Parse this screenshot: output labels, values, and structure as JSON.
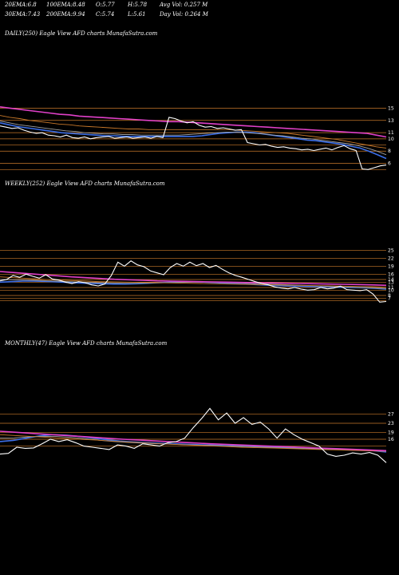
{
  "header": {
    "row1": [
      {
        "label": "20EMA:",
        "value": "6.8"
      },
      {
        "label": "100EMA:",
        "value": "8.48"
      },
      {
        "label": "O:",
        "value": "5.77"
      },
      {
        "label": "H:",
        "value": "5.78"
      },
      {
        "label": "Avg Vol:",
        "value": "0.257"
      },
      {
        "label": "M",
        "value": ""
      }
    ],
    "row2": [
      {
        "label": "30EMA:",
        "value": "7.43"
      },
      {
        "label": "200EMA:",
        "value": "9.94"
      },
      {
        "label": "C:",
        "value": "5.74"
      },
      {
        "label": "L:",
        "value": "5.61"
      },
      {
        "label": "Day Vol:",
        "value": "0.264"
      },
      {
        "label": "M",
        "value": ""
      }
    ]
  },
  "colors": {
    "background": "#000000",
    "price": "#ffffff",
    "ema_blue": "#3b6ee8",
    "ema_pink": "#e040c8",
    "ema_orange": "#c8782a",
    "ema_gray": "#a0a0a0",
    "support_line": "#c8782a"
  },
  "chart_data": [
    {
      "type": "line",
      "title": "DAILY(250) Eagle   View  AFD charts MunafaSutra.com",
      "ylabels": [
        "15",
        "13",
        "11",
        "10",
        "8",
        "6"
      ],
      "hlines": [
        15,
        13,
        11,
        10,
        9,
        8,
        6,
        5
      ],
      "ylim": [
        4,
        17
      ],
      "series": [
        {
          "role": "price",
          "values": [
            12.1,
            11.9,
            11.7,
            11.8,
            11.4,
            11.1,
            10.9,
            11.0,
            10.6,
            10.5,
            10.3,
            10.6,
            10.2,
            10.1,
            10.3,
            10.0,
            10.2,
            10.3,
            10.4,
            10.1,
            10.2,
            10.3,
            10.1,
            10.2,
            10.3,
            10.1,
            10.4,
            10.2,
            13.5,
            13.3,
            12.9,
            12.6,
            12.8,
            12.2,
            11.9,
            12.0,
            11.7,
            11.8,
            11.6,
            11.4,
            11.5,
            9.4,
            9.2,
            9.0,
            9.1,
            8.8,
            8.6,
            8.7,
            8.5,
            8.4,
            8.2,
            8.3,
            8.1,
            8.3,
            8.5,
            8.2,
            8.6,
            8.9,
            8.4,
            8.1,
            5.1,
            5.0,
            5.3,
            5.6,
            5.74
          ]
        },
        {
          "role": "ema",
          "color": "blue",
          "values": [
            12.6,
            12.3,
            12.0,
            11.8,
            11.6,
            11.4,
            11.2,
            11.0,
            10.9,
            10.8,
            10.7,
            10.6,
            10.5,
            10.5,
            10.4,
            10.4,
            10.4,
            10.4,
            10.4,
            10.4,
            10.4,
            10.4,
            10.4,
            10.5,
            10.7,
            10.9,
            11.0,
            11.1,
            11.1,
            11.0,
            10.8,
            10.6,
            10.4,
            10.2,
            10.0,
            9.8,
            9.7,
            9.5,
            9.3,
            9.1,
            8.8,
            8.5,
            8.0,
            7.4,
            6.8
          ]
        },
        {
          "role": "ema",
          "color": "gray",
          "values": [
            12.9,
            12.6,
            12.3,
            12.1,
            11.9,
            11.7,
            11.5,
            11.3,
            11.2,
            11.0,
            10.9,
            10.8,
            10.8,
            10.7,
            10.7,
            10.6,
            10.6,
            10.6,
            10.6,
            10.6,
            10.7,
            10.8,
            10.9,
            11.0,
            11.1,
            11.1,
            11.0,
            10.9,
            10.8,
            10.6,
            10.5,
            10.3,
            10.1,
            10.0,
            9.8,
            9.6,
            9.4,
            9.2,
            8.9,
            8.5,
            8.0,
            7.4
          ]
        },
        {
          "role": "ema",
          "color": "orange",
          "values": [
            13.8,
            13.5,
            13.3,
            13.0,
            12.8,
            12.6,
            12.4,
            12.3,
            12.1,
            12.0,
            11.9,
            11.8,
            11.7,
            11.6,
            11.6,
            11.5,
            11.5,
            11.5,
            11.5,
            11.5,
            11.5,
            11.5,
            11.5,
            11.5,
            11.4,
            11.3,
            11.2,
            11.1,
            11.0,
            10.9,
            10.7,
            10.5,
            10.3,
            10.1,
            9.9,
            9.6,
            9.3,
            9.0,
            8.7,
            8.5
          ]
        },
        {
          "role": "ema",
          "color": "pink",
          "values": [
            15.2,
            15.0,
            14.8,
            14.6,
            14.4,
            14.2,
            14.0,
            13.9,
            13.7,
            13.6,
            13.5,
            13.4,
            13.3,
            13.2,
            13.1,
            13.0,
            12.9,
            12.8,
            12.8,
            12.7,
            12.6,
            12.5,
            12.4,
            12.3,
            12.2,
            12.1,
            12.0,
            11.9,
            11.8,
            11.7,
            11.6,
            11.5,
            11.4,
            11.3,
            11.2,
            11.1,
            11.0,
            10.9,
            10.6,
            10.3
          ]
        }
      ]
    },
    {
      "type": "line",
      "title": "WEEKLY(252) Eagle   View  AFD charts MunafaSutra.com",
      "ylabels": [
        "25",
        "22",
        "19",
        "16",
        "14",
        "13",
        "11",
        "10",
        "8",
        "7"
      ],
      "hlines": [
        25,
        22,
        19,
        16,
        14,
        13,
        11,
        10,
        8,
        7,
        6
      ],
      "ylim": [
        2,
        26
      ],
      "series": [
        {
          "role": "price",
          "values": [
            13.5,
            14.0,
            15.5,
            14.8,
            16.0,
            15.2,
            14.5,
            15.8,
            14.2,
            13.8,
            13.0,
            12.5,
            13.2,
            12.8,
            12.0,
            11.6,
            12.3,
            15.5,
            20.5,
            19.0,
            21.0,
            19.5,
            18.8,
            17.2,
            16.5,
            15.8,
            18.5,
            20.0,
            19.0,
            20.5,
            19.2,
            20.0,
            18.5,
            19.3,
            17.8,
            16.5,
            15.5,
            14.8,
            14.0,
            13.2,
            12.5,
            12.0,
            11.2,
            10.8,
            10.5,
            11.0,
            10.4,
            10.0,
            10.2,
            11.0,
            10.5,
            10.8,
            11.5,
            10.2,
            10.0,
            9.8,
            10.2,
            8.5,
            5.5,
            5.74
          ]
        },
        {
          "role": "ema",
          "color": "blue",
          "values": [
            13.0,
            13.2,
            13.4,
            13.4,
            13.3,
            13.1,
            12.9,
            12.7,
            12.5,
            12.4,
            12.3,
            12.3,
            12.4,
            12.6,
            12.8,
            13.0,
            13.1,
            13.1,
            13.0,
            12.8,
            12.6,
            12.4,
            12.2,
            12.0,
            11.8,
            11.6,
            11.5,
            11.4,
            11.3,
            11.2,
            11.1,
            11.0,
            10.9,
            10.7,
            10.4
          ]
        },
        {
          "role": "ema",
          "color": "gray",
          "values": [
            14.0,
            13.9,
            13.8,
            13.6,
            13.4,
            13.2,
            13.0,
            12.8,
            12.7,
            12.6,
            12.6,
            12.7,
            12.8,
            12.9,
            13.0,
            13.0,
            12.9,
            12.8,
            12.6,
            12.4,
            12.2,
            12.0,
            11.8,
            11.6,
            11.4,
            11.2,
            11.0,
            10.8,
            10.6
          ]
        },
        {
          "role": "ema",
          "color": "orange",
          "values": [
            15.0,
            14.7,
            14.4,
            14.1,
            13.8,
            13.6,
            13.4,
            13.2,
            13.1,
            13.0,
            12.9,
            12.8,
            12.7,
            12.6,
            12.5,
            12.4,
            12.3,
            12.2,
            12.1,
            12.0,
            11.9,
            11.8,
            11.7,
            11.6,
            11.5,
            11.4,
            11.3,
            11.1
          ]
        },
        {
          "role": "ema",
          "color": "pink",
          "values": [
            17.0,
            16.6,
            16.2,
            15.8,
            15.4,
            15.0,
            14.7,
            14.4,
            14.1,
            13.9,
            13.7,
            13.5,
            13.4,
            13.3,
            13.2,
            13.1,
            13.0,
            12.9,
            12.8,
            12.7,
            12.6,
            12.5,
            12.4,
            12.3,
            12.2,
            12.1,
            12.0,
            11.8
          ]
        }
      ]
    },
    {
      "type": "line",
      "title": "MONTHLY(47) Eagle   View  AFD charts MunafaSutra.com",
      "ylabels": [
        "27",
        "23",
        "19",
        "16"
      ],
      "hlines": [
        27,
        23,
        19,
        16,
        13
      ],
      "ylim": [
        2,
        30
      ],
      "series": [
        {
          "role": "price",
          "values": [
            9.5,
            9.8,
            12.5,
            12.0,
            12.2,
            14.0,
            16.0,
            15.0,
            15.8,
            14.5,
            13.0,
            12.5,
            12.0,
            11.5,
            13.5,
            13.0,
            12.0,
            14.0,
            13.5,
            13.0,
            14.5,
            15.0,
            16.5,
            21.0,
            25.0,
            29.5,
            24.5,
            27.5,
            23.0,
            25.5,
            22.5,
            23.5,
            20.5,
            16.5,
            20.5,
            18.0,
            16.0,
            14.5,
            13.0,
            9.5,
            8.5,
            9.0,
            10.0,
            9.5,
            10.2,
            9.0,
            5.74
          ]
        },
        {
          "role": "ema",
          "color": "blue",
          "values": [
            15.0,
            15.5,
            16.5,
            17.5,
            18.0,
            17.8,
            17.2,
            16.5,
            15.8,
            15.2,
            14.8,
            14.5,
            14.2,
            14.0,
            13.8,
            13.6,
            13.4,
            13.2,
            13.0,
            12.8,
            12.6,
            12.4,
            12.2,
            12.0,
            11.8,
            11.6,
            11.4,
            11.2,
            11.0,
            10.4
          ]
        },
        {
          "role": "ema",
          "color": "gray",
          "values": [
            16.5,
            16.6,
            17.0,
            17.3,
            17.2,
            16.8,
            16.2,
            15.5,
            15.0,
            14.6,
            14.3,
            14.0,
            13.8,
            13.6,
            13.4,
            13.2,
            13.0,
            12.8,
            12.6,
            12.4,
            12.2,
            12.0,
            11.8,
            11.6,
            11.4,
            11.2,
            11.0,
            10.8
          ]
        },
        {
          "role": "ema",
          "color": "orange",
          "values": [
            18.0,
            17.6,
            17.2,
            16.8,
            16.4,
            16.0,
            15.6,
            15.2,
            14.8,
            14.4,
            14.0,
            13.7,
            13.4,
            13.1,
            12.8,
            12.5,
            12.3,
            12.1,
            11.9,
            11.7,
            11.5,
            11.3,
            11.1,
            10.9,
            10.7
          ]
        },
        {
          "role": "ema",
          "color": "pink",
          "values": [
            19.5,
            19.0,
            18.5,
            18.0,
            17.5,
            17.0,
            16.5,
            16.0,
            15.6,
            15.2,
            14.8,
            14.4,
            14.0,
            13.7,
            13.4,
            13.1,
            12.8,
            12.5,
            12.2,
            11.9,
            11.6,
            11.3,
            11.0
          ]
        }
      ]
    }
  ]
}
